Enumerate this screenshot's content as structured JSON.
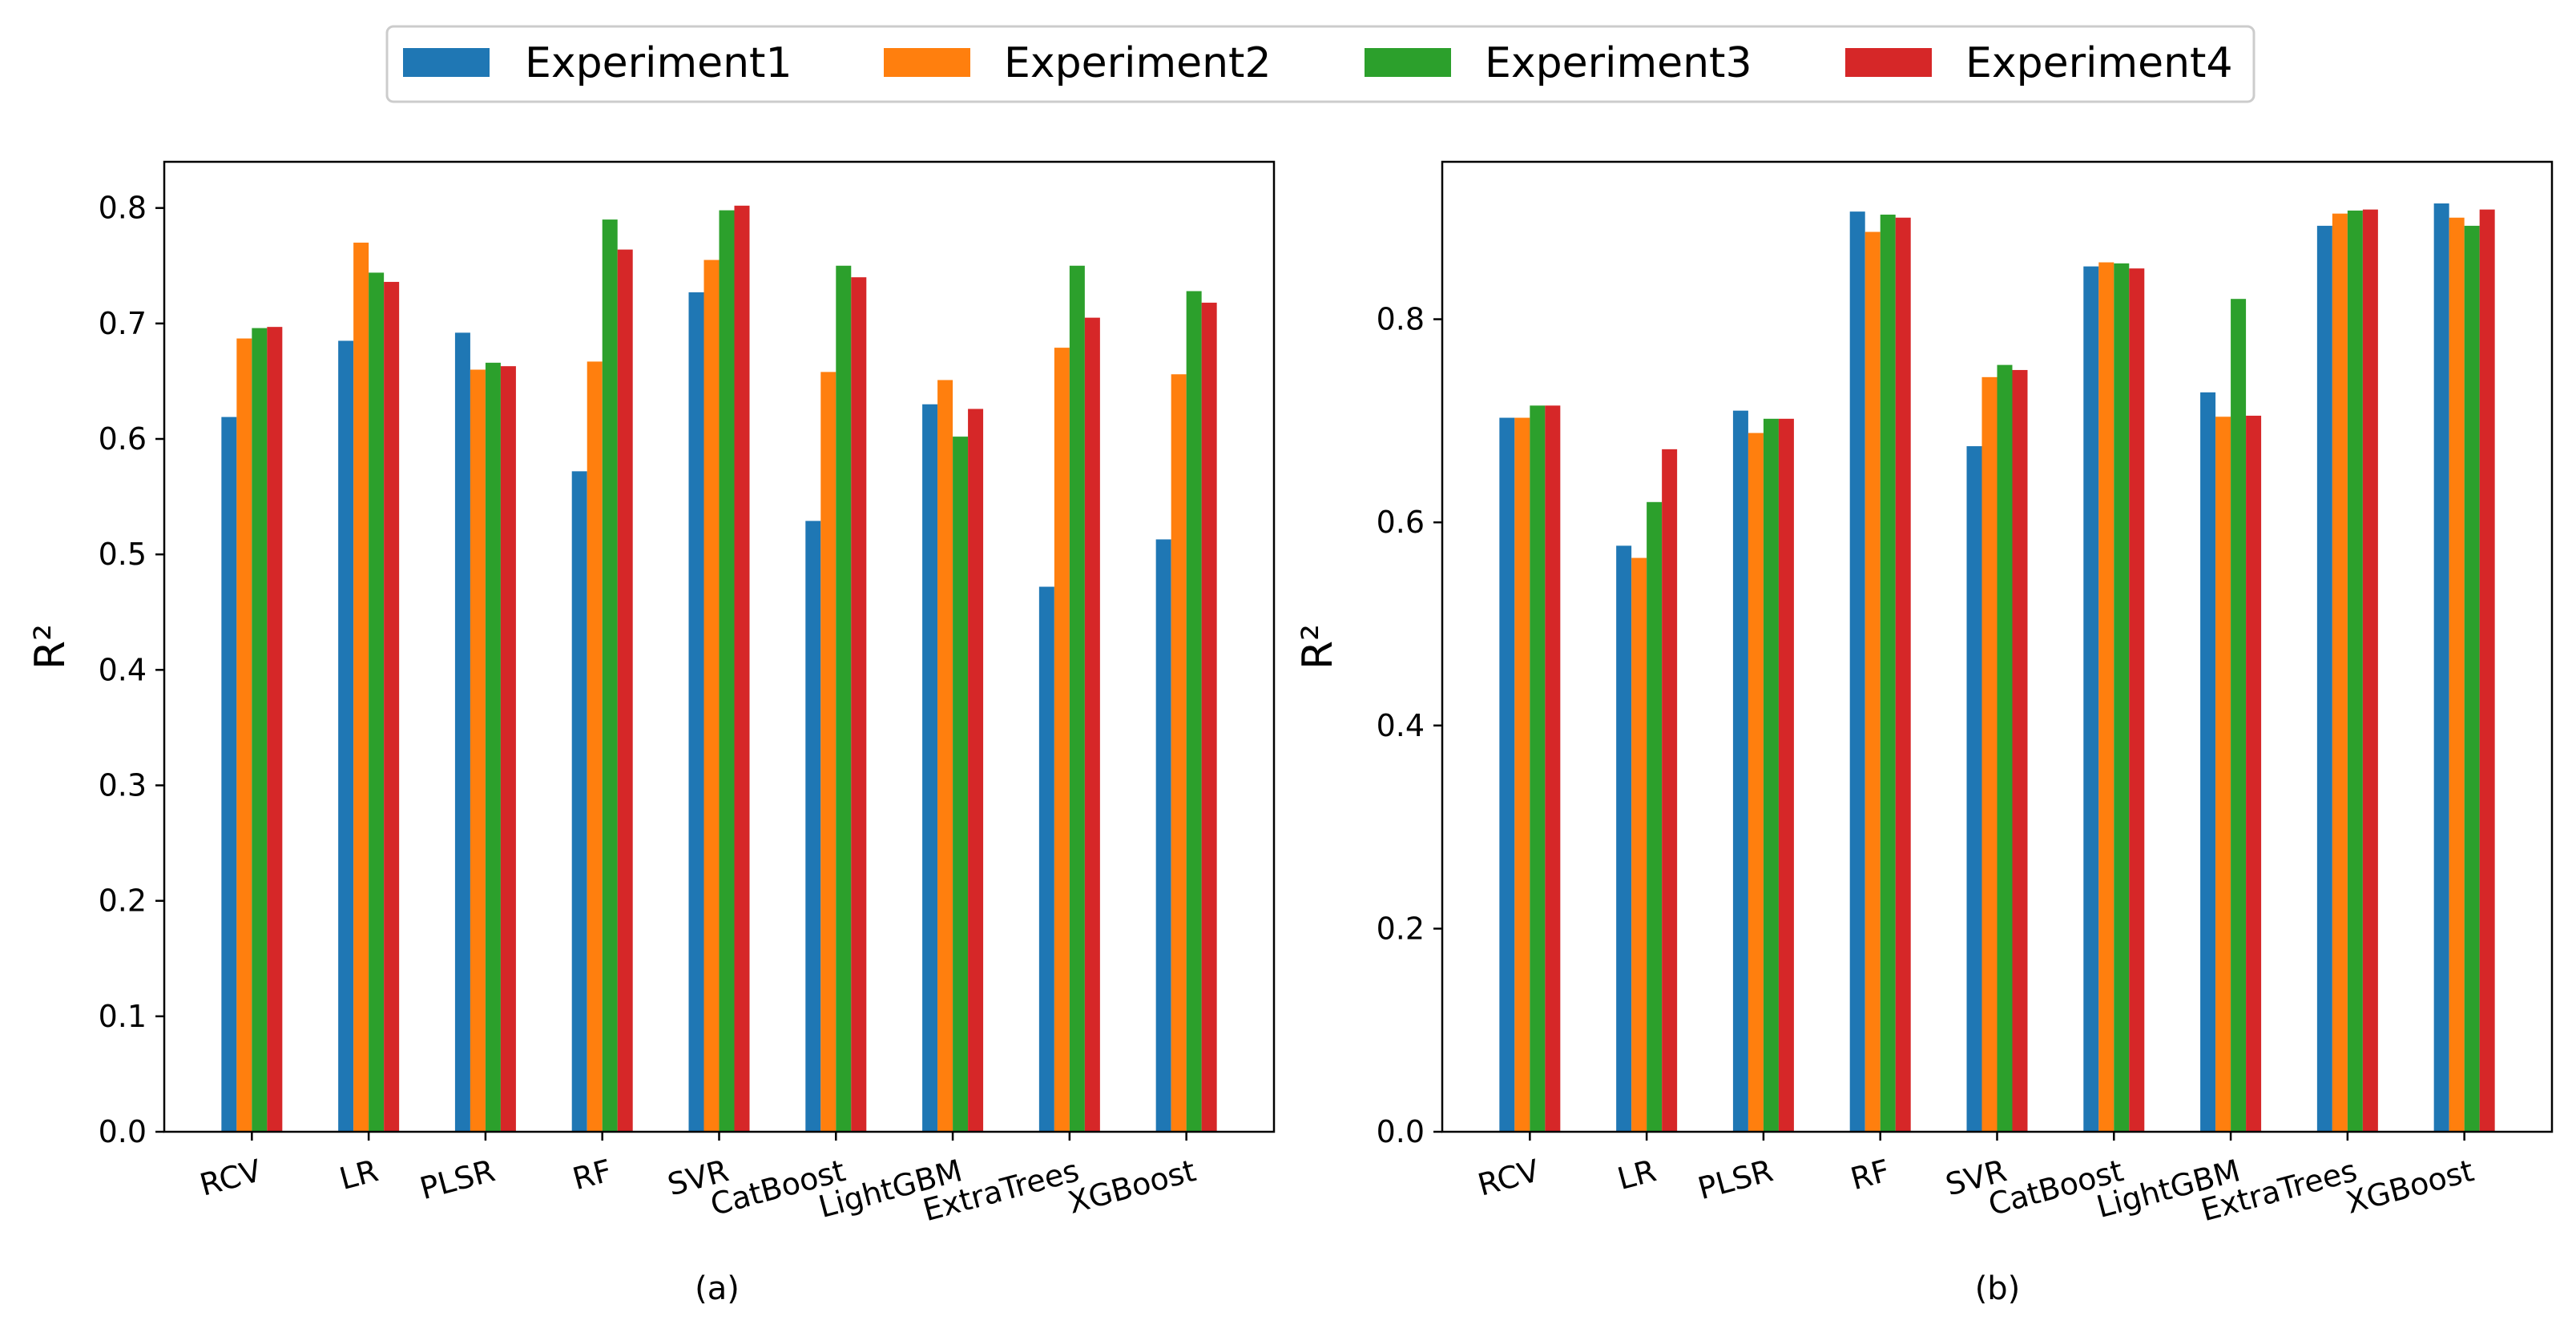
{
  "legend": {
    "location": "top-center",
    "entries": [
      {
        "name": "Experiment1",
        "color": "#1f77b4"
      },
      {
        "name": "Experiment2",
        "color": "#ff7f0e"
      },
      {
        "name": "Experiment3",
        "color": "#2ca02c"
      },
      {
        "name": "Experiment4",
        "color": "#d62728"
      }
    ]
  },
  "chart_data": [
    {
      "type": "bar",
      "caption": "(a)",
      "title": "",
      "xlabel": "",
      "ylabel": "R²",
      "ylim": [
        0,
        0.84
      ],
      "yticks": [
        0.0,
        0.1,
        0.2,
        0.3,
        0.4,
        0.5,
        0.6,
        0.7,
        0.8
      ],
      "ytick_labels": [
        "0.0",
        "0.1",
        "0.2",
        "0.3",
        "0.4",
        "0.5",
        "0.6",
        "0.7",
        "0.8"
      ],
      "grid": false,
      "categories": [
        "RCV",
        "LR",
        "PLSR",
        "RF",
        "SVR",
        "CatBoost",
        "LightGBM",
        "ExtraTrees",
        "XGBoost"
      ],
      "series": [
        {
          "name": "Experiment1",
          "values": [
            0.619,
            0.685,
            0.692,
            0.572,
            0.727,
            0.529,
            0.63,
            0.472,
            0.513
          ]
        },
        {
          "name": "Experiment2",
          "values": [
            0.687,
            0.77,
            0.66,
            0.667,
            0.755,
            0.658,
            0.651,
            0.679,
            0.656
          ]
        },
        {
          "name": "Experiment3",
          "values": [
            0.696,
            0.744,
            0.666,
            0.79,
            0.798,
            0.75,
            0.602,
            0.75,
            0.728
          ]
        },
        {
          "name": "Experiment4",
          "values": [
            0.697,
            0.736,
            0.663,
            0.764,
            0.802,
            0.74,
            0.626,
            0.705,
            0.718
          ]
        }
      ]
    },
    {
      "type": "bar",
      "caption": "(b)",
      "title": "",
      "xlabel": "",
      "ylabel": "R²",
      "ylim": [
        0,
        0.955
      ],
      "yticks": [
        0.0,
        0.2,
        0.4,
        0.6,
        0.8
      ],
      "ytick_labels": [
        "0.0",
        "0.2",
        "0.4",
        "0.6",
        "0.8"
      ],
      "grid": false,
      "categories": [
        "RCV",
        "LR",
        "PLSR",
        "RF",
        "SVR",
        "CatBoost",
        "LightGBM",
        "ExtraTrees",
        "XGBoost"
      ],
      "series": [
        {
          "name": "Experiment1",
          "values": [
            0.703,
            0.577,
            0.71,
            0.906,
            0.675,
            0.852,
            0.728,
            0.892,
            0.914
          ]
        },
        {
          "name": "Experiment2",
          "values": [
            0.703,
            0.565,
            0.688,
            0.886,
            0.743,
            0.856,
            0.704,
            0.904,
            0.9
          ]
        },
        {
          "name": "Experiment3",
          "values": [
            0.715,
            0.62,
            0.702,
            0.903,
            0.755,
            0.855,
            0.82,
            0.907,
            0.892
          ]
        },
        {
          "name": "Experiment4",
          "values": [
            0.715,
            0.672,
            0.702,
            0.9,
            0.75,
            0.85,
            0.705,
            0.908,
            0.908
          ]
        }
      ]
    }
  ]
}
